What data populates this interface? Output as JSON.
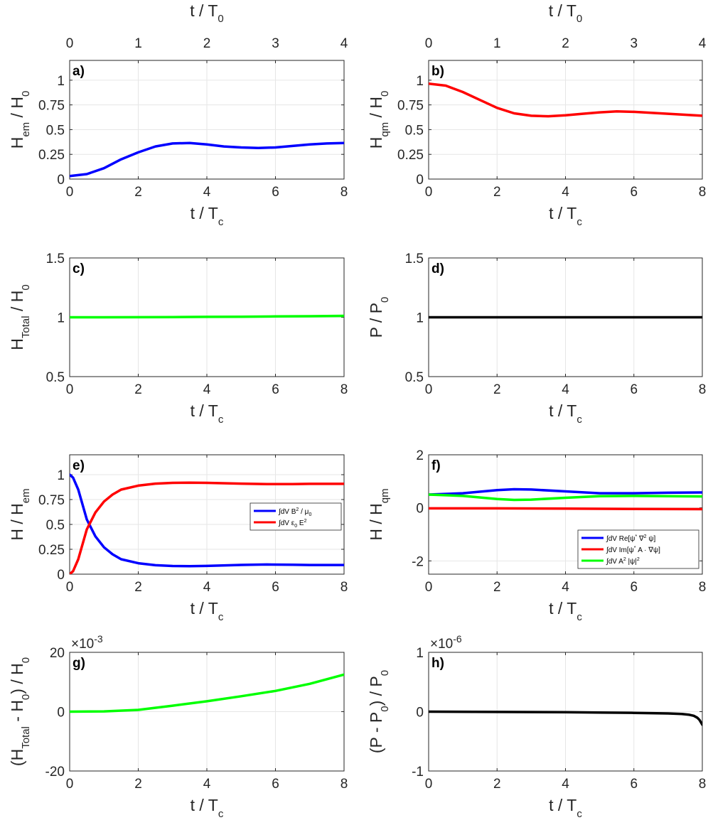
{
  "chart_data": [
    {
      "id": "a",
      "type": "line",
      "panel_label": "a)",
      "ylabel_main": "H",
      "ylabel_sub": "em",
      "ylabel_rest": " / H",
      "ylabel_sub2": "0",
      "xlabel_main": "t / T",
      "xlabel_sub": "c",
      "top_xlabel_main": "t / T",
      "top_xlabel_sub": "0",
      "xlim": [
        0,
        8
      ],
      "ylim": [
        0,
        1.2
      ],
      "xticks": [
        "0",
        "2",
        "4",
        "6",
        "8"
      ],
      "top_xticks": [
        "0",
        "1",
        "2",
        "3",
        "4"
      ],
      "yticks": [
        {
          "v": 0,
          "l": "0"
        },
        {
          "v": 0.25,
          "l": "0.25"
        },
        {
          "v": 0.5,
          "l": "0.5"
        },
        {
          "v": 0.75,
          "l": "0.75"
        },
        {
          "v": 1,
          "l": "1"
        }
      ],
      "series": [
        {
          "name": "H_em",
          "color": "#0000ff",
          "x": [
            0,
            0.5,
            1,
            1.5,
            2,
            2.5,
            3,
            3.5,
            4,
            4.5,
            5,
            5.5,
            6,
            6.5,
            7,
            7.5,
            8
          ],
          "y": [
            0.03,
            0.05,
            0.11,
            0.2,
            0.27,
            0.33,
            0.36,
            0.365,
            0.35,
            0.33,
            0.32,
            0.315,
            0.32,
            0.335,
            0.35,
            0.36,
            0.365
          ]
        }
      ]
    },
    {
      "id": "b",
      "type": "line",
      "panel_label": "b)",
      "ylabel_main": "H",
      "ylabel_sub": "qm",
      "ylabel_rest": " / H",
      "ylabel_sub2": "0",
      "xlabel_main": "t / T",
      "xlabel_sub": "c",
      "top_xlabel_main": "t / T",
      "top_xlabel_sub": "0",
      "xlim": [
        0,
        8
      ],
      "ylim": [
        0,
        1.2
      ],
      "xticks": [
        "0",
        "2",
        "4",
        "6",
        "8"
      ],
      "top_xticks": [
        "0",
        "1",
        "2",
        "3",
        "4"
      ],
      "yticks": [
        {
          "v": 0,
          "l": "0"
        },
        {
          "v": 0.25,
          "l": "0.25"
        },
        {
          "v": 0.5,
          "l": "0.5"
        },
        {
          "v": 0.75,
          "l": "0.75"
        },
        {
          "v": 1,
          "l": "1"
        }
      ],
      "series": [
        {
          "name": "H_qm",
          "color": "#ff0000",
          "x": [
            0,
            0.5,
            1,
            1.5,
            2,
            2.5,
            3,
            3.5,
            4,
            4.5,
            5,
            5.5,
            6,
            6.5,
            7,
            7.5,
            8
          ],
          "y": [
            0.965,
            0.945,
            0.88,
            0.8,
            0.72,
            0.665,
            0.64,
            0.635,
            0.645,
            0.66,
            0.675,
            0.685,
            0.68,
            0.67,
            0.66,
            0.65,
            0.64
          ]
        }
      ]
    },
    {
      "id": "c",
      "type": "line",
      "panel_label": "c)",
      "ylabel_main": "H",
      "ylabel_sub": "Total",
      "ylabel_rest": " / H",
      "ylabel_sub2": "0",
      "xlabel_main": "t / T",
      "xlabel_sub": "c",
      "xlim": [
        0,
        8
      ],
      "ylim": [
        0.5,
        1.5
      ],
      "xticks": [
        "0",
        "2",
        "4",
        "6",
        "8"
      ],
      "yticks": [
        {
          "v": 0.5,
          "l": "0.5"
        },
        {
          "v": 1,
          "l": "1"
        },
        {
          "v": 1.5,
          "l": "1.5"
        }
      ],
      "series": [
        {
          "name": "H_Total",
          "color": "#00ff00",
          "x": [
            0,
            1,
            2,
            3,
            4,
            5,
            6,
            7,
            8
          ],
          "y": [
            1.0,
            1.0,
            1.0005,
            1.0015,
            1.0035,
            1.005,
            1.007,
            1.009,
            1.012
          ]
        }
      ]
    },
    {
      "id": "d",
      "type": "line",
      "panel_label": "d)",
      "ylabel_main": "P / P",
      "ylabel_sub": "0",
      "ylabel_rest": "",
      "ylabel_sub2": "",
      "xlabel_main": "t / T",
      "xlabel_sub": "c",
      "xlim": [
        0,
        8
      ],
      "ylim": [
        0.5,
        1.5
      ],
      "xticks": [
        "0",
        "2",
        "4",
        "6",
        "8"
      ],
      "yticks": [
        {
          "v": 0.5,
          "l": "0.5"
        },
        {
          "v": 1,
          "l": "1"
        },
        {
          "v": 1.5,
          "l": "1.5"
        }
      ],
      "series": [
        {
          "name": "P",
          "color": "#000000",
          "x": [
            0,
            8
          ],
          "y": [
            1.0,
            1.0
          ]
        }
      ]
    },
    {
      "id": "e",
      "type": "line",
      "panel_label": "e)",
      "ylabel_main": "H / H",
      "ylabel_sub": "em",
      "ylabel_rest": "",
      "ylabel_sub2": "",
      "xlabel_main": "t / T",
      "xlabel_sub": "c",
      "xlim": [
        0,
        8
      ],
      "ylim": [
        0,
        1.2
      ],
      "xticks": [
        "0",
        "2",
        "4",
        "6",
        "8"
      ],
      "yticks": [
        {
          "v": 0,
          "l": "0"
        },
        {
          "v": 0.25,
          "l": "0.25"
        },
        {
          "v": 0.5,
          "l": "0.5"
        },
        {
          "v": 0.75,
          "l": "0.75"
        },
        {
          "v": 1,
          "l": "1"
        }
      ],
      "legend": {
        "position": "middle-right",
        "entries": [
          {
            "color": "#0000ff",
            "pre": "∫dV B",
            "sup": "2",
            "post": " / μ",
            "sub": "0"
          },
          {
            "color": "#ff0000",
            "pre": "∫dV ε",
            "sub": "0",
            "post": " E",
            "sup": "2"
          }
        ]
      },
      "series": [
        {
          "name": "B energy",
          "color": "#0000ff",
          "x": [
            0,
            0.1,
            0.25,
            0.5,
            0.75,
            1,
            1.25,
            1.5,
            2,
            2.5,
            3,
            3.5,
            4,
            5,
            5.75,
            6.5,
            7,
            8
          ],
          "y": [
            1.0,
            0.97,
            0.85,
            0.55,
            0.38,
            0.27,
            0.2,
            0.15,
            0.11,
            0.09,
            0.082,
            0.08,
            0.083,
            0.093,
            0.097,
            0.095,
            0.092,
            0.092
          ]
        },
        {
          "name": "E energy",
          "color": "#ff0000",
          "x": [
            0,
            0.1,
            0.25,
            0.5,
            0.75,
            1,
            1.25,
            1.5,
            2,
            2.5,
            3,
            3.5,
            4,
            5,
            5.75,
            6.5,
            7,
            8
          ],
          "y": [
            0.0,
            0.03,
            0.15,
            0.45,
            0.62,
            0.73,
            0.8,
            0.85,
            0.89,
            0.91,
            0.918,
            0.92,
            0.918,
            0.91,
            0.905,
            0.905,
            0.908,
            0.908
          ]
        }
      ]
    },
    {
      "id": "f",
      "type": "line",
      "panel_label": "f)",
      "ylabel_main": "H / H",
      "ylabel_sub": "qm",
      "ylabel_rest": "",
      "ylabel_sub2": "",
      "xlabel_main": "t / T",
      "xlabel_sub": "c",
      "xlim": [
        0,
        8
      ],
      "ylim": [
        -2.5,
        2
      ],
      "xticks": [
        "0",
        "2",
        "4",
        "6",
        "8"
      ],
      "yticks": [
        {
          "v": -2,
          "l": "-2"
        },
        {
          "v": 0,
          "l": "0"
        },
        {
          "v": 2,
          "l": "2"
        }
      ],
      "legend": {
        "position": "bottom-right",
        "entries": [
          {
            "color": "#0000ff",
            "pre": "∫dV Re[ψ",
            "sup": "*",
            "post": " ∇",
            "sup2": "2",
            "post2": " ψ]"
          },
          {
            "color": "#ff0000",
            "pre": "∫dV Im[ψ",
            "sup": "*",
            "post": " A · ∇ψ]"
          },
          {
            "color": "#00ff00",
            "pre": "∫dV A",
            "sup": "2",
            "post": " |ψ|",
            "sup2": "2"
          }
        ]
      },
      "series": [
        {
          "name": "Re term",
          "color": "#0000ff",
          "x": [
            0,
            1,
            2,
            2.5,
            3,
            4,
            5,
            6,
            7,
            8
          ],
          "y": [
            0.5,
            0.55,
            0.67,
            0.7,
            0.69,
            0.62,
            0.55,
            0.55,
            0.57,
            0.58
          ]
        },
        {
          "name": "Im term",
          "color": "#ff0000",
          "x": [
            0,
            2,
            4,
            6,
            8
          ],
          "y": [
            -0.02,
            -0.02,
            -0.03,
            -0.04,
            -0.05
          ]
        },
        {
          "name": "A2 term",
          "color": "#00ff00",
          "x": [
            0,
            1,
            2,
            2.5,
            3,
            4,
            5,
            6,
            7,
            8
          ],
          "y": [
            0.5,
            0.45,
            0.33,
            0.3,
            0.31,
            0.38,
            0.44,
            0.45,
            0.44,
            0.43
          ]
        }
      ]
    },
    {
      "id": "g",
      "type": "line",
      "panel_label": "g)",
      "ylabel_main": "(H",
      "ylabel_sub": "Total",
      "ylabel_rest": " - H",
      "ylabel_sub2": "0",
      "ylabel_tail": ") / H",
      "ylabel_sub3": "0",
      "xlabel_main": "t / T",
      "xlabel_sub": "c",
      "xlim": [
        0,
        8
      ],
      "ylim": [
        -20,
        20
      ],
      "exponent_base": "×10",
      "exponent_power": "-3",
      "xticks": [
        "0",
        "2",
        "4",
        "6",
        "8"
      ],
      "yticks": [
        {
          "v": -20,
          "l": "-20"
        },
        {
          "v": 0,
          "l": "0"
        },
        {
          "v": 20,
          "l": "20"
        }
      ],
      "series": [
        {
          "name": "H_Total drift",
          "color": "#00ff00",
          "x": [
            0,
            1,
            2,
            3,
            4,
            5,
            6,
            7,
            8
          ],
          "y": [
            0,
            0.1,
            0.6,
            2.0,
            3.5,
            5.2,
            7.0,
            9.4,
            12.5
          ]
        }
      ]
    },
    {
      "id": "h",
      "type": "line",
      "panel_label": "h)",
      "ylabel_main": "(P - P",
      "ylabel_sub": "0",
      "ylabel_rest": ") / P",
      "ylabel_sub2": "0",
      "xlabel_main": "t / T",
      "xlabel_sub": "c",
      "xlim": [
        0,
        8
      ],
      "ylim": [
        -1,
        1
      ],
      "exponent_base": "×10",
      "exponent_power": "-6",
      "xticks": [
        "0",
        "2",
        "4",
        "6",
        "8"
      ],
      "yticks": [
        {
          "v": -1,
          "l": "-1"
        },
        {
          "v": 0,
          "l": "0"
        },
        {
          "v": 1,
          "l": "1"
        }
      ],
      "series": [
        {
          "name": "P drift",
          "color": "#000000",
          "x": [
            0,
            2,
            4,
            5,
            6,
            7,
            7.4,
            7.6,
            7.75,
            7.85,
            7.92,
            8
          ],
          "y": [
            0,
            -0.005,
            -0.01,
            -0.015,
            -0.02,
            -0.03,
            -0.04,
            -0.05,
            -0.07,
            -0.1,
            -0.14,
            -0.22
          ]
        }
      ]
    }
  ]
}
